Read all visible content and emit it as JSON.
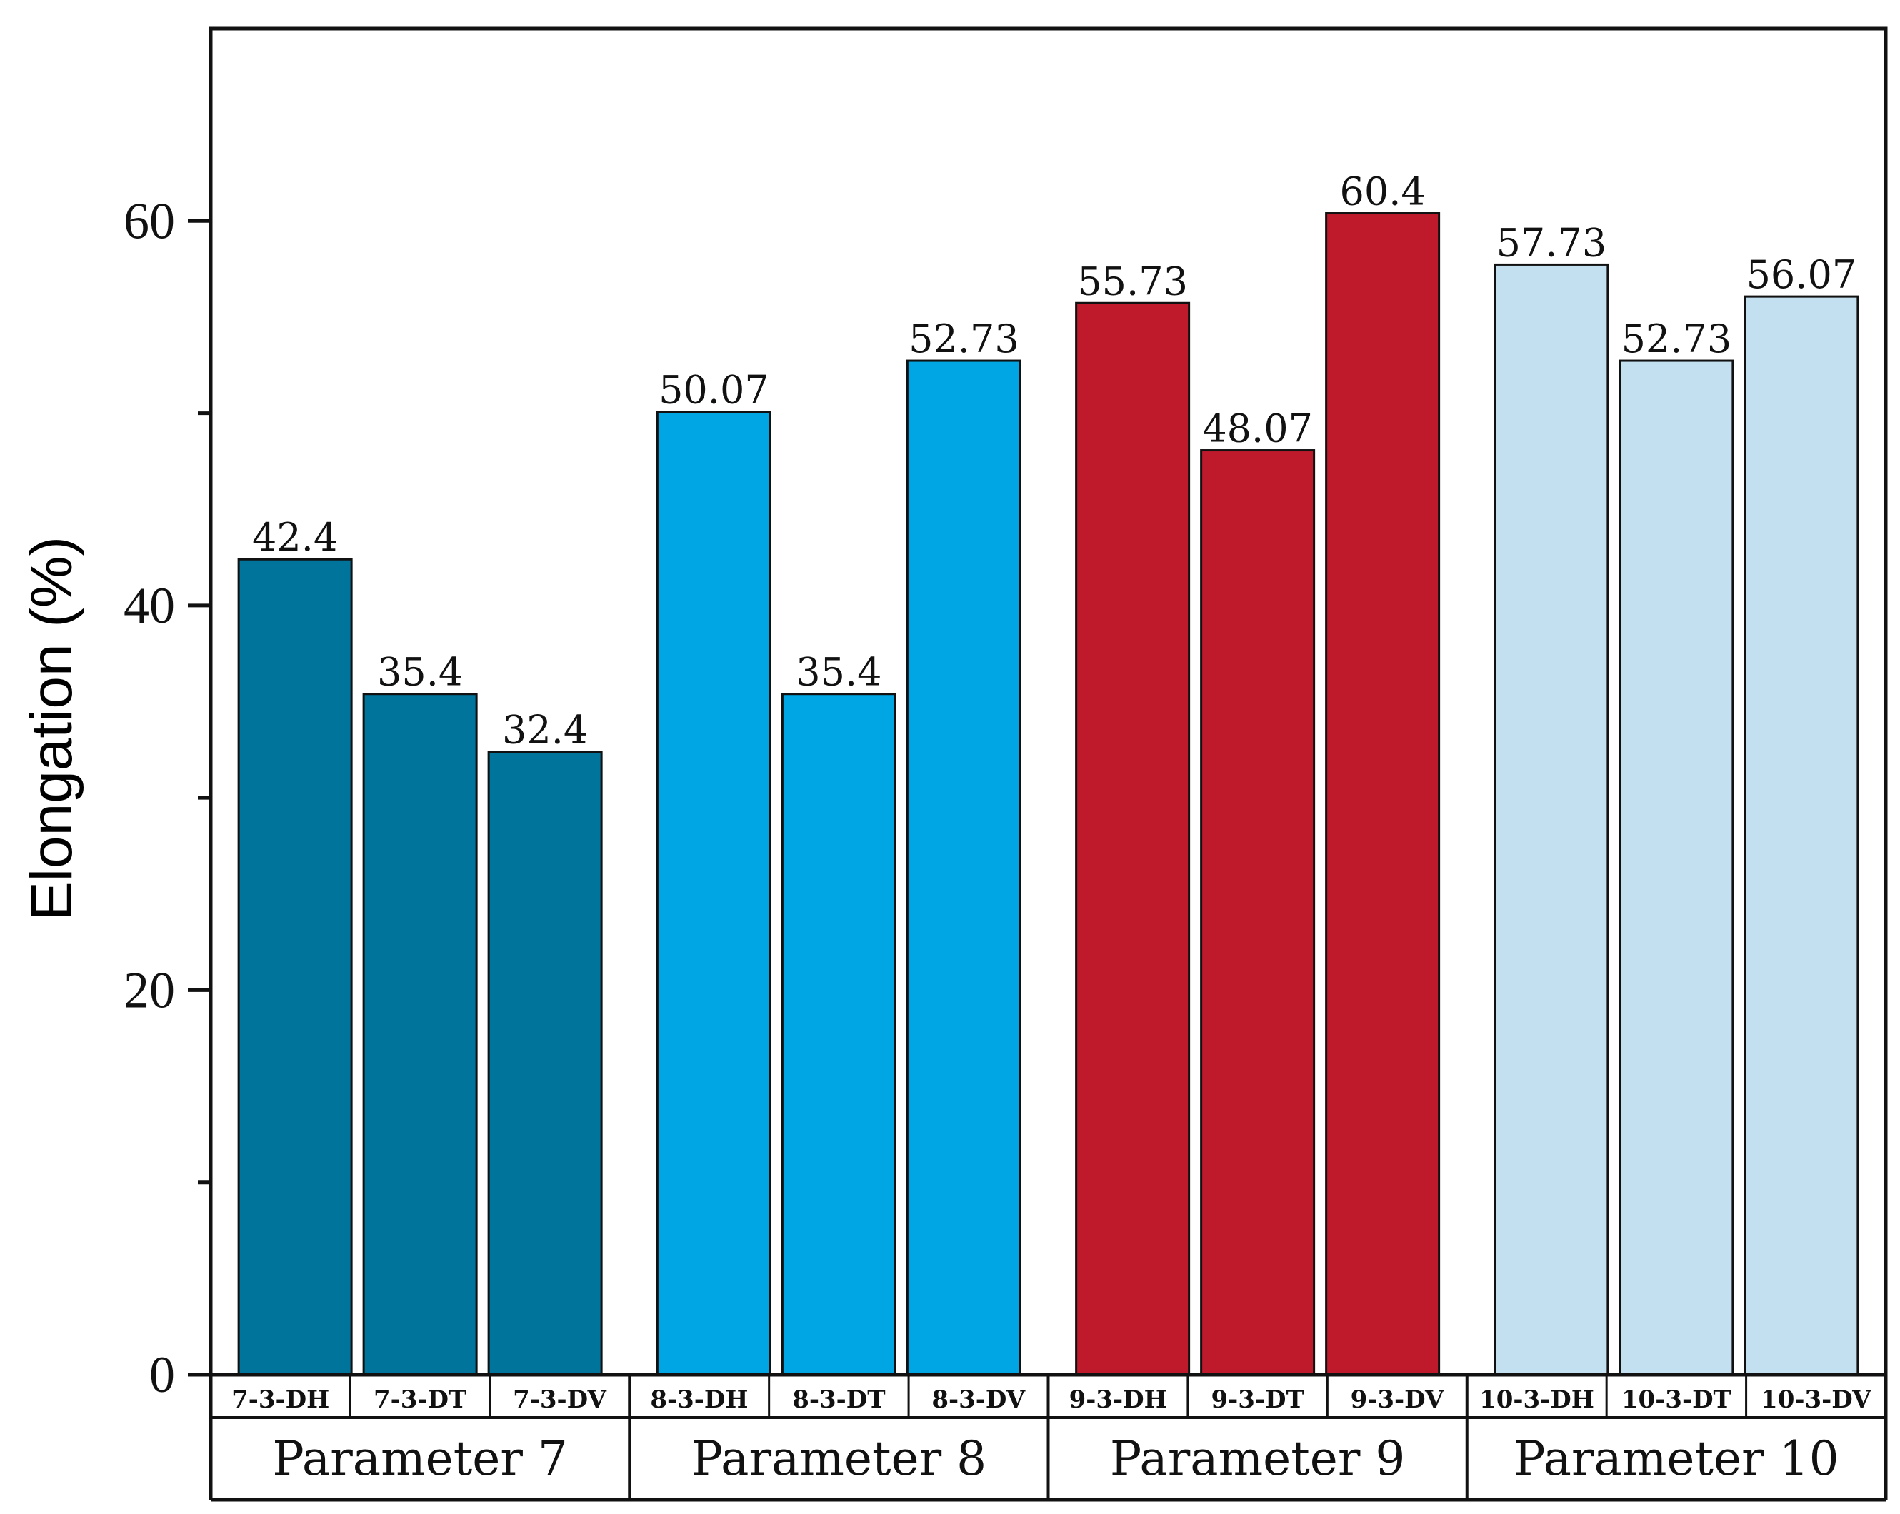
{
  "chart_data": {
    "type": "bar",
    "ylabel": "Elongation (%)",
    "ylim": [
      0,
      70
    ],
    "y_major_ticks": [
      0,
      20,
      40,
      60
    ],
    "y_minor_ticks": [
      10,
      30,
      50
    ],
    "groups": [
      {
        "label": "Parameter 7",
        "color": "#00749B",
        "bars": [
          {
            "category": "7-3-DH",
            "value": 42.4,
            "label": "42.4"
          },
          {
            "category": "7-3-DT",
            "value": 35.4,
            "label": "35.4"
          },
          {
            "category": "7-3-DV",
            "value": 32.4,
            "label": "32.4"
          }
        ]
      },
      {
        "label": "Parameter 8",
        "color": "#00A6E3",
        "bars": [
          {
            "category": "8-3-DH",
            "value": 50.07,
            "label": "50.07"
          },
          {
            "category": "8-3-DT",
            "value": 35.4,
            "label": "35.4"
          },
          {
            "category": "8-3-DV",
            "value": 52.73,
            "label": "52.73"
          }
        ]
      },
      {
        "label": "Parameter 9",
        "color": "#BE1A2C",
        "bars": [
          {
            "category": "9-3-DH",
            "value": 55.73,
            "label": "55.73"
          },
          {
            "category": "9-3-DT",
            "value": 48.07,
            "label": "48.07"
          },
          {
            "category": "9-3-DV",
            "value": 60.4,
            "label": "60.4"
          }
        ]
      },
      {
        "label": "Parameter 10",
        "color": "#C2E0F0",
        "bars": [
          {
            "category": "10-3-DH",
            "value": 57.73,
            "label": "57.73"
          },
          {
            "category": "10-3-DT",
            "value": 52.73,
            "label": "52.73"
          },
          {
            "category": "10-3-DV",
            "value": 56.07,
            "label": "56.07"
          }
        ]
      }
    ]
  }
}
